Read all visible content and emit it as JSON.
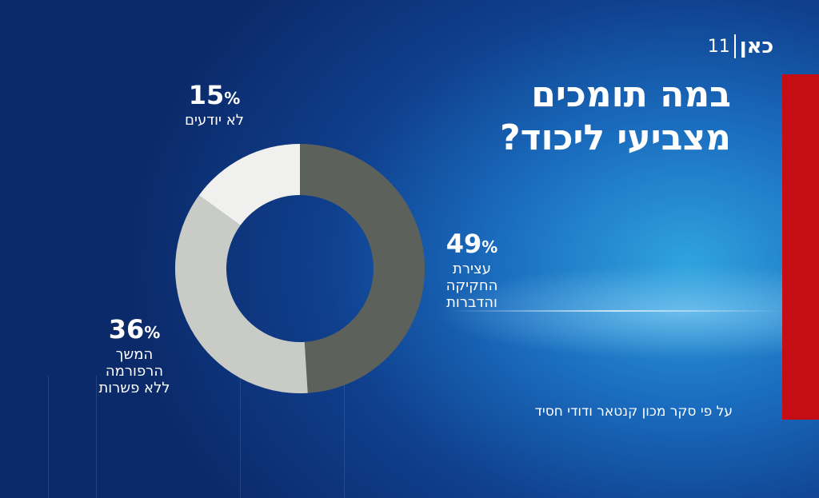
{
  "broadcaster": {
    "logo_text": "כאן",
    "logo_number": "11"
  },
  "title_lines": [
    "במה תומכים",
    "מצביעי ליכוד?"
  ],
  "source": "על פי סקר מכון קנטאר ודודי חסיד",
  "colors": {
    "accent_red": "#c40d14",
    "slice_1": "#5d615c",
    "slice_2": "#c9cbc7",
    "slice_3": "#f0f1ee"
  },
  "chart_data": {
    "type": "pie",
    "categories": [
      "עצירת החקיקה והדברות",
      "המשך הרפורמה ללא פשרות",
      "לא יודעים"
    ],
    "values": [
      49,
      36,
      15
    ],
    "unit": "%",
    "labels": [
      {
        "value": "49",
        "lines": [
          "עצירת",
          "החקיקה",
          "והדברות"
        ]
      },
      {
        "value": "36",
        "lines": [
          "המשך",
          "הרפורמה",
          "ללא פשרות"
        ]
      },
      {
        "value": "15",
        "lines": [
          "לא יודעים"
        ]
      }
    ]
  }
}
